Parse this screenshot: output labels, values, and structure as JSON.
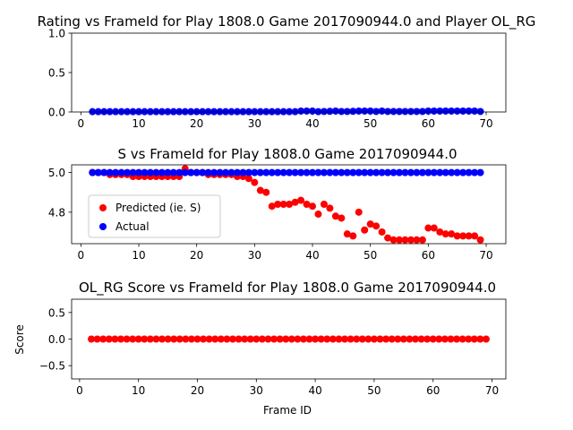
{
  "chart_data": [
    {
      "type": "scatter",
      "title": "Rating vs FrameId for Play 1808.0 Game 2017090944.0 and Player OL_RG",
      "xlabel": "",
      "ylabel": "",
      "xlim": [
        -1.6,
        73.4
      ],
      "ylim": [
        0,
        1
      ],
      "xticks": [
        "0",
        "10",
        "20",
        "30",
        "40",
        "50",
        "60",
        "70"
      ],
      "yticks": [
        "0.0",
        "0.5",
        "1.0"
      ],
      "xtick_values": [
        0,
        10,
        20,
        30,
        40,
        50,
        60,
        70
      ],
      "ytick_values": [
        0,
        0.5,
        1.0
      ],
      "grid": false,
      "legend": null,
      "series": [
        {
          "color": "#0000ff",
          "x": [
            2,
            3,
            4,
            5,
            6,
            7,
            8,
            9,
            10,
            11,
            12,
            13,
            14,
            15,
            16,
            17,
            18,
            19,
            20,
            21,
            22,
            23,
            24,
            25,
            26,
            27,
            28,
            29,
            30,
            31,
            32,
            33,
            34,
            35,
            36,
            37,
            38,
            39,
            40,
            41,
            42,
            43,
            44,
            45,
            46,
            47,
            48,
            49,
            50,
            51,
            52,
            53,
            54,
            55,
            56,
            57,
            58,
            59,
            60,
            61,
            62,
            63,
            64,
            65,
            66,
            67,
            68,
            69
          ],
          "values": [
            0.004,
            0.004,
            0.004,
            0.004,
            0.004,
            0.004,
            0.004,
            0.004,
            0.004,
            0.004,
            0.004,
            0.004,
            0.004,
            0.004,
            0.004,
            0.004,
            0.004,
            0.004,
            0.004,
            0.004,
            0.004,
            0.004,
            0.004,
            0.004,
            0.004,
            0.004,
            0.004,
            0.004,
            0.004,
            0.004,
            0.004,
            0.004,
            0.004,
            0.004,
            0.004,
            0.004,
            0.012,
            0.012,
            0.012,
            0.004,
            0.006,
            0.008,
            0.012,
            0.006,
            0.006,
            0.008,
            0.012,
            0.012,
            0.012,
            0.006,
            0.012,
            0.006,
            0.006,
            0.006,
            0.006,
            0.006,
            0.006,
            0.006,
            0.012,
            0.012,
            0.012,
            0.012,
            0.012,
            0.012,
            0.012,
            0.012,
            0.012,
            0.006
          ]
        }
      ]
    },
    {
      "type": "scatter",
      "title": "S vs FrameId for Play 1808.0 Game 2017090944.0",
      "xlabel": "",
      "ylabel": "",
      "xlim": [
        -1.6,
        73.4
      ],
      "ylim": [
        4.641,
        5.039
      ],
      "xticks": [
        "0",
        "10",
        "20",
        "30",
        "40",
        "50",
        "60",
        "70"
      ],
      "yticks": [
        "4.8",
        "5.0"
      ],
      "xtick_values": [
        0,
        10,
        20,
        30,
        40,
        50,
        60,
        70
      ],
      "ytick_values": [
        4.8,
        5.0
      ],
      "grid": false,
      "legend": "center-left",
      "series": [
        {
          "name": "Predicted (ie. S)",
          "color": "#ff0000",
          "x": [
            2,
            3,
            4,
            5,
            6,
            7,
            8,
            9,
            10,
            11,
            12,
            13,
            14,
            15,
            16,
            17,
            18,
            19,
            20,
            21,
            22,
            23,
            24,
            25,
            26,
            27,
            28,
            29,
            30,
            31,
            32,
            33,
            34,
            35,
            36,
            37,
            38,
            39,
            40,
            41,
            42,
            43,
            44,
            45,
            46,
            47,
            48,
            49,
            50,
            51,
            52,
            53,
            54,
            55,
            56,
            57,
            58,
            59,
            60,
            61,
            62,
            63,
            64,
            65,
            66,
            67,
            68,
            69
          ],
          "values": [
            5.0,
            5.0,
            5.0,
            4.99,
            4.99,
            4.99,
            4.99,
            4.98,
            4.98,
            4.98,
            4.98,
            4.98,
            4.98,
            4.98,
            4.98,
            4.98,
            5.02,
            5.0,
            5.0,
            5.0,
            4.99,
            4.99,
            4.99,
            4.99,
            4.99,
            4.98,
            4.98,
            4.97,
            4.95,
            4.91,
            4.9,
            4.83,
            4.84,
            4.84,
            4.84,
            4.85,
            4.86,
            4.84,
            4.83,
            4.79,
            4.84,
            4.82,
            4.78,
            4.77,
            4.69,
            4.68,
            4.8,
            4.71,
            4.74,
            4.73,
            4.7,
            4.67,
            4.66,
            4.66,
            4.66,
            4.66,
            4.66,
            4.66,
            4.72,
            4.72,
            4.7,
            4.69,
            4.69,
            4.68,
            4.68,
            4.68,
            4.68,
            4.66
          ]
        },
        {
          "name": "Actual",
          "color": "#0000ff",
          "x": [
            2,
            3,
            4,
            5,
            6,
            7,
            8,
            9,
            10,
            11,
            12,
            13,
            14,
            15,
            16,
            17,
            18,
            19,
            20,
            21,
            22,
            23,
            24,
            25,
            26,
            27,
            28,
            29,
            30,
            31,
            32,
            33,
            34,
            35,
            36,
            37,
            38,
            39,
            40,
            41,
            42,
            43,
            44,
            45,
            46,
            47,
            48,
            49,
            50,
            51,
            52,
            53,
            54,
            55,
            56,
            57,
            58,
            59,
            60,
            61,
            62,
            63,
            64,
            65,
            66,
            67,
            68,
            69
          ],
          "values": [
            5.0,
            5.0,
            5.0,
            5.0,
            5.0,
            5.0,
            5.0,
            5.0,
            5.0,
            5.0,
            5.0,
            5.0,
            5.0,
            5.0,
            5.0,
            5.0,
            5.0,
            5.0,
            5.0,
            5.0,
            5.0,
            5.0,
            5.0,
            5.0,
            5.0,
            5.0,
            5.0,
            5.0,
            5.0,
            5.0,
            5.0,
            5.0,
            5.0,
            5.0,
            5.0,
            5.0,
            5.0,
            5.0,
            5.0,
            5.0,
            5.0,
            5.0,
            5.0,
            5.0,
            5.0,
            5.0,
            5.0,
            5.0,
            5.0,
            5.0,
            5.0,
            5.0,
            5.0,
            5.0,
            5.0,
            5.0,
            5.0,
            5.0,
            5.0,
            5.0,
            5.0,
            5.0,
            5.0,
            5.0,
            5.0,
            5.0,
            5.0,
            5.0
          ]
        }
      ]
    },
    {
      "type": "scatter",
      "title": "OL_RG Score vs FrameId for Play 1808.0 Game 2017090944.0",
      "xlabel": "Frame ID",
      "ylabel": "Score",
      "xlim": [
        -1.35,
        72.35
      ],
      "ylim": [
        -0.75,
        0.75
      ],
      "xticks": [
        "0",
        "10",
        "20",
        "30",
        "40",
        "50",
        "60",
        "70"
      ],
      "yticks": [
        "−0.5",
        "0.0",
        "0.5"
      ],
      "xtick_values": [
        0,
        10,
        20,
        30,
        40,
        50,
        60,
        70
      ],
      "ytick_values": [
        -0.5,
        0,
        0.5
      ],
      "grid": false,
      "legend": null,
      "series": [
        {
          "color": "#ff0000",
          "x": [
            2,
            3,
            4,
            5,
            6,
            7,
            8,
            9,
            10,
            11,
            12,
            13,
            14,
            15,
            16,
            17,
            18,
            19,
            20,
            21,
            22,
            23,
            24,
            25,
            26,
            27,
            28,
            29,
            30,
            31,
            32,
            33,
            34,
            35,
            36,
            37,
            38,
            39,
            40,
            41,
            42,
            43,
            44,
            45,
            46,
            47,
            48,
            49,
            50,
            51,
            52,
            53,
            54,
            55,
            56,
            57,
            58,
            59,
            60,
            61,
            62,
            63,
            64,
            65,
            66,
            67,
            68,
            69
          ],
          "values": [
            0,
            0,
            0,
            0,
            0,
            0,
            0,
            0,
            0,
            0,
            0,
            0,
            0,
            0,
            0,
            0,
            0,
            0,
            0,
            0,
            0,
            0,
            0,
            0,
            0,
            0,
            0,
            0,
            0,
            0,
            0,
            0,
            0,
            0,
            0,
            0,
            0,
            0,
            0,
            0,
            0,
            0,
            0,
            0,
            0,
            0,
            0,
            0,
            0,
            0,
            0,
            0,
            0,
            0,
            0,
            0,
            0,
            0,
            0,
            0,
            0,
            0,
            0,
            0,
            0,
            0,
            0,
            0
          ]
        }
      ]
    }
  ]
}
